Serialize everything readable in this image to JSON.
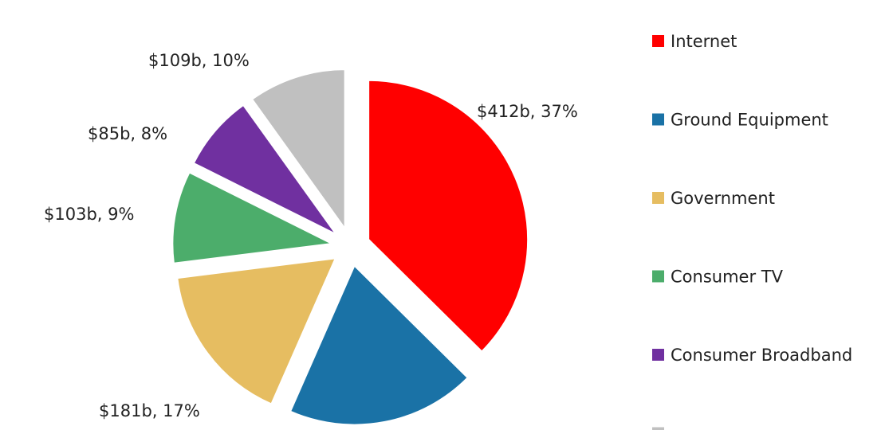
{
  "chart_data": {
    "type": "pie",
    "title": "",
    "categories": [
      "Internet",
      "Ground Equipment",
      "Government",
      "Consumer TV",
      "Consumer Broadband",
      ""
    ],
    "values": [
      412,
      211,
      181,
      103,
      85,
      109
    ],
    "percents": [
      37,
      19,
      17,
      9,
      8,
      10
    ],
    "unit": "$b",
    "colors": [
      "#ff0000",
      "#1a72a6",
      "#e6bd61",
      "#4cad6b",
      "#7030a0",
      "#c0c0c0"
    ],
    "data_labels": [
      "$412b, 37%",
      "",
      "$181b, 17%",
      "$103b, 9%",
      "$85b, 8%",
      "$109b, 10%"
    ],
    "legend_position": "right",
    "exploded": true
  }
}
